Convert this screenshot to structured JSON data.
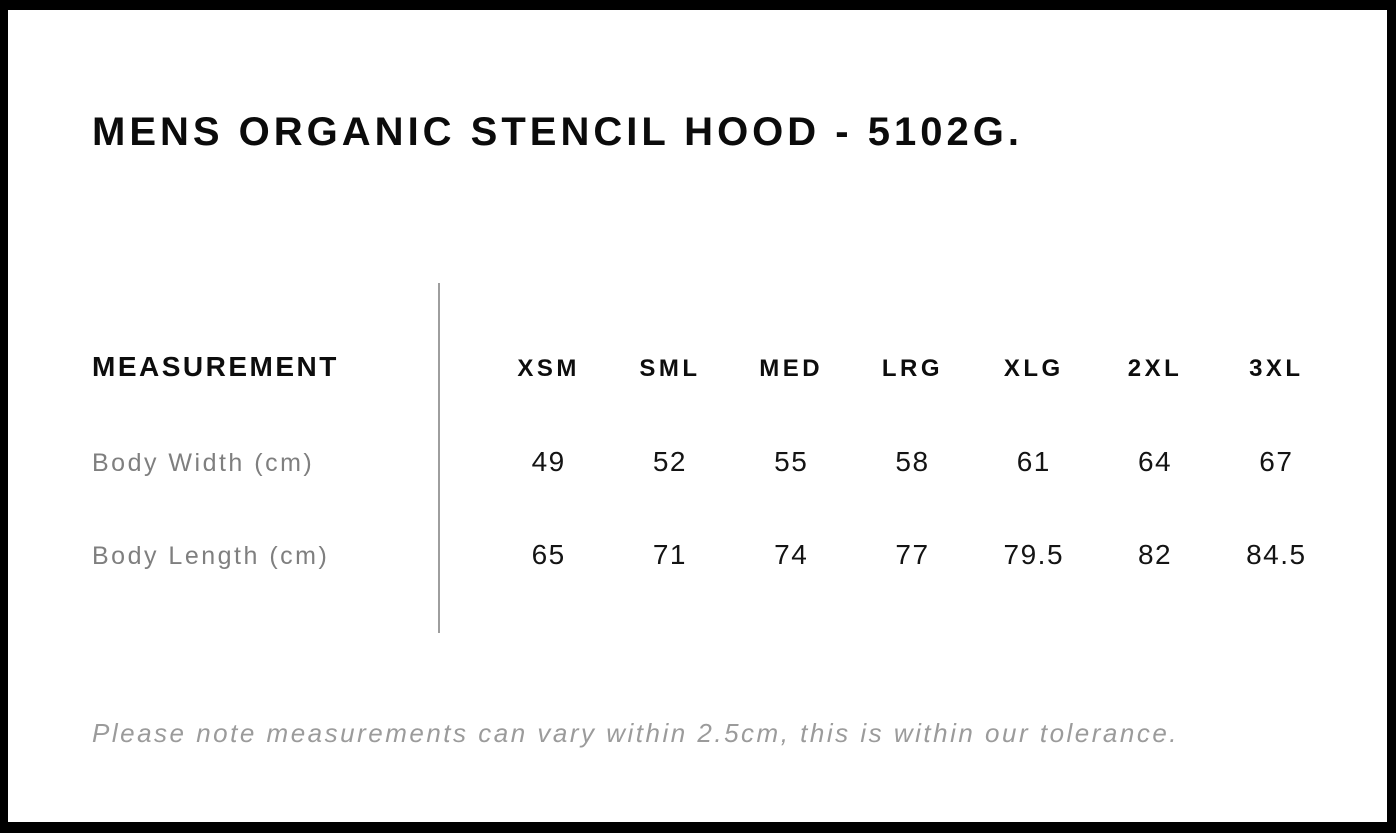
{
  "page": {
    "title": "MENS ORGANIC STENCIL HOOD - 5102G."
  },
  "size_table": {
    "header_label": "MEASUREMENT",
    "sizes": [
      "XSM",
      "SML",
      "MED",
      "LRG",
      "XLG",
      "2XL",
      "3XL"
    ],
    "rows": [
      {
        "label": "Body Width (cm)",
        "values": [
          "49",
          "52",
          "55",
          "58",
          "61",
          "64",
          "67"
        ]
      },
      {
        "label": "Body Length (cm)",
        "values": [
          "65",
          "71",
          "74",
          "77",
          "79.5",
          "82",
          "84.5"
        ]
      }
    ]
  },
  "note": "Please note measurements can vary within 2.5cm, this is within our tolerance.",
  "colors": {
    "frame": "#000000",
    "heading_text": "#0b0b0b",
    "value_text": "#141414",
    "muted_label": "#7f7f7f",
    "note_text": "#9b9b9b",
    "divider": "#9e9e9e",
    "background": "#ffffff"
  }
}
